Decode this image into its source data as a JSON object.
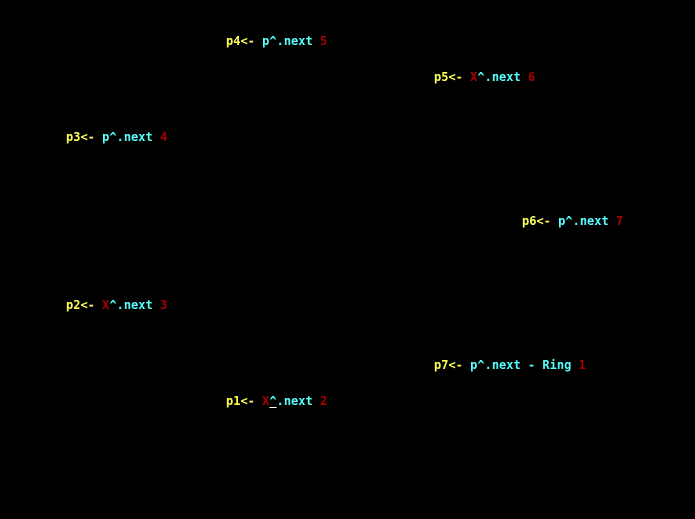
{
  "lines": {
    "p4": {
      "target": "p4",
      "arrow": "<- ",
      "source": "p",
      "next": "^.next",
      "index": "5"
    },
    "p5": {
      "target": "p5",
      "arrow": "<- ",
      "source": "X",
      "next": "^.next",
      "index": "6"
    },
    "p3": {
      "target": "p3",
      "arrow": "<- ",
      "source": "p",
      "next": "^.next",
      "index": "4"
    },
    "p6": {
      "target": "p6",
      "arrow": "<- ",
      "source": "p",
      "next": "^.next",
      "index": "7"
    },
    "p2": {
      "target": "p2",
      "arrow": "<- ",
      "source": "X",
      "next": "^.next",
      "index": "3"
    },
    "p7": {
      "target": "p7",
      "arrow": "<- ",
      "source": "p",
      "next": "^.next - Ring",
      "index": "1"
    },
    "p1": {
      "target": "p1",
      "arrow": "<- ",
      "source": "X",
      "caret": "^",
      "next": ".next",
      "index": "2"
    }
  },
  "colors": {
    "background": "#000000",
    "pointer": "#ffff55",
    "expression": "#55ffff",
    "index": "#aa0000",
    "x_mark": "#aa0000",
    "cursor": "#ffffff"
  }
}
